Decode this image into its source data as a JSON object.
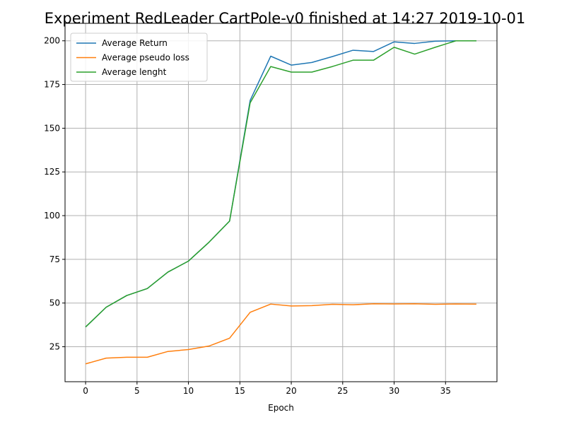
{
  "chart_data": {
    "type": "line",
    "title": "Experiment RedLeader CartPole-v0 finished at 14:27 2019-10-01",
    "xlabel": "Epoch",
    "ylabel": "",
    "xlim": [
      -2,
      40
    ],
    "ylim": [
      5,
      210
    ],
    "xticks": [
      0,
      5,
      10,
      15,
      20,
      25,
      30,
      35
    ],
    "yticks": [
      25,
      50,
      75,
      100,
      125,
      150,
      175,
      200
    ],
    "grid": true,
    "legend_position": "top-left",
    "x": [
      0,
      2,
      4,
      6,
      8,
      10,
      12,
      14,
      16,
      18,
      20,
      22,
      24,
      26,
      28,
      30,
      32,
      34,
      36,
      38
    ],
    "series": [
      {
        "name": "Average Return",
        "color": "#1f77b4",
        "values": [
          36.3,
          47.6,
          54.3,
          58.3,
          67.7,
          74.0,
          84.8,
          96.9,
          165.9,
          191.2,
          186.1,
          187.6,
          191.0,
          194.6,
          193.9,
          199.4,
          198.5,
          199.8,
          200.0,
          200.0
        ]
      },
      {
        "name": "Average pseudo loss",
        "color": "#ff7f0e",
        "values": [
          15.2,
          18.5,
          19.0,
          19.0,
          22.3,
          23.4,
          25.4,
          29.9,
          44.7,
          49.4,
          48.3,
          48.5,
          49.3,
          49.0,
          49.6,
          49.5,
          49.6,
          49.3,
          49.5,
          49.4
        ]
      },
      {
        "name": "Average lenght",
        "color": "#2ca02c",
        "values": [
          36.3,
          47.6,
          54.3,
          58.3,
          67.7,
          74.0,
          84.8,
          96.9,
          164.5,
          185.3,
          182.1,
          182.1,
          185.3,
          188.9,
          188.9,
          196.3,
          192.4,
          196.3,
          200.0,
          200.0
        ]
      }
    ]
  }
}
